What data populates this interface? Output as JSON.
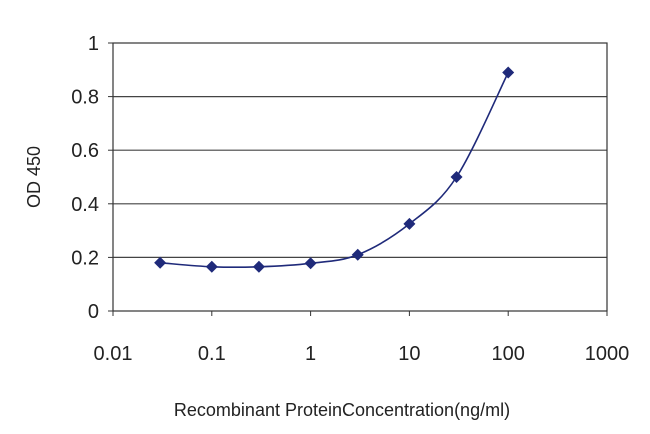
{
  "chart_data": {
    "type": "scatter",
    "title": "",
    "xlabel": "Recombinant ProteinConcentration(ng/ml)",
    "ylabel": "OD 450",
    "xscale": "log",
    "xlim": [
      0.01,
      1000
    ],
    "ylim": [
      0,
      1
    ],
    "x_ticks": [
      "0.01",
      "0.1",
      "1",
      "10",
      "100",
      "1000"
    ],
    "y_ticks": [
      "0",
      "0.2",
      "0.4",
      "0.6",
      "0.8",
      "1"
    ],
    "grid": "horizontal",
    "legend": "none",
    "line": "smoothed",
    "series": [
      {
        "color": "#1f2a7a",
        "marker": "diamond",
        "x": [
          0.03,
          0.1,
          0.3,
          1,
          3,
          10,
          30,
          100
        ],
        "y": [
          0.18,
          0.165,
          0.165,
          0.178,
          0.21,
          0.325,
          0.5,
          0.89
        ]
      }
    ]
  }
}
